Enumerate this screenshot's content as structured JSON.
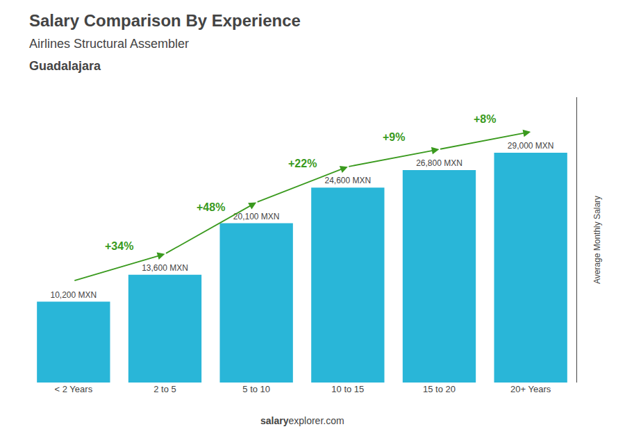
{
  "chart_data": {
    "type": "bar",
    "title": "Salary Comparison By Experience",
    "subtitle": "Airlines Structural Assembler",
    "city": "Guadalajara",
    "y_label": "Average Monthly Salary",
    "footer": [
      "salary",
      "explorer.com"
    ],
    "categories": [
      "< 2 Years",
      "2 to 5",
      "5 to 10",
      "10 to 15",
      "15 to 20",
      "20+ Years"
    ],
    "values": [
      10200,
      13600,
      20100,
      24600,
      26800,
      29000
    ],
    "value_labels": [
      "10,200 MXN",
      "13,600 MXN",
      "20,100 MXN",
      "24,600 MXN",
      "26,800 MXN",
      "29,000 MXN"
    ],
    "data_labels": true,
    "annotations": [
      "+34%",
      "+48%",
      "+22%",
      "+9%",
      "+8%"
    ],
    "color": "#29b6d8",
    "ylim": [
      0,
      36000
    ],
    "tick_labels": "x",
    "grid": false
  }
}
